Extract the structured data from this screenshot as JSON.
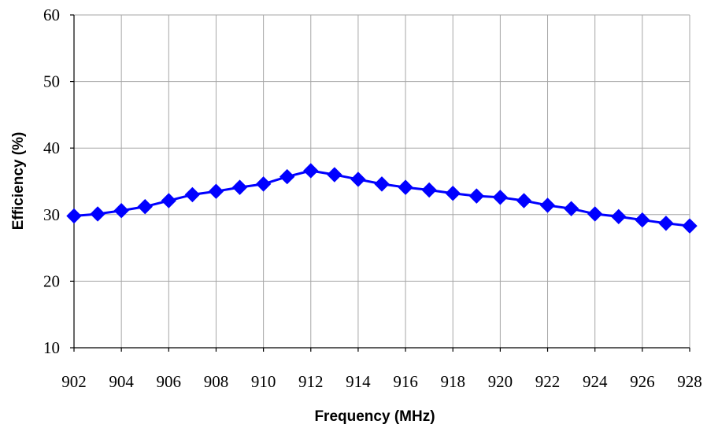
{
  "chart_data": {
    "type": "line",
    "xlabel": "Frequency (MHz)",
    "ylabel": "Efficiency (%)",
    "xlim": [
      902,
      928
    ],
    "ylim": [
      10,
      60
    ],
    "x_ticks": [
      902,
      904,
      906,
      908,
      910,
      912,
      914,
      916,
      918,
      920,
      922,
      924,
      926,
      928
    ],
    "y_ticks": [
      10,
      20,
      30,
      40,
      50,
      60
    ],
    "grid": true,
    "marker": "diamond",
    "series_color": "#0000ff",
    "series": [
      {
        "x": [
          902,
          903,
          904,
          905,
          906,
          907,
          908,
          909,
          910,
          911,
          912,
          913,
          914,
          915,
          916,
          917,
          918,
          919,
          920,
          921,
          922,
          923,
          924,
          925,
          926,
          927,
          928
        ],
        "values": [
          29.8,
          30.1,
          30.6,
          31.2,
          32.1,
          33.0,
          33.5,
          34.1,
          34.6,
          35.7,
          36.6,
          36.0,
          35.3,
          34.6,
          34.1,
          33.7,
          33.2,
          32.8,
          32.6,
          32.1,
          31.4,
          30.9,
          30.1,
          29.7,
          29.2,
          28.7,
          28.3
        ]
      }
    ]
  }
}
